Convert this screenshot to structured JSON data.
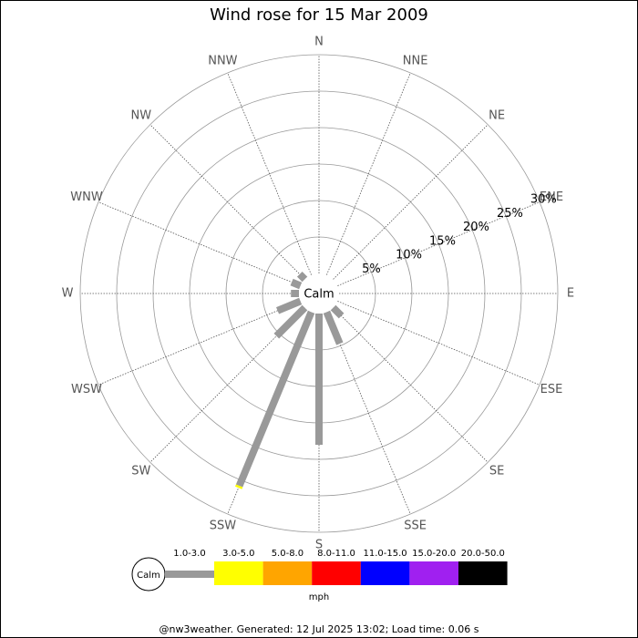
{
  "chart_data": {
    "type": "wind_rose",
    "title": "Wind rose for 15 Mar 2009",
    "directions": [
      "N",
      "NNE",
      "NE",
      "ENE",
      "E",
      "ESE",
      "SE",
      "SSE",
      "S",
      "SSW",
      "SW",
      "WSW",
      "W",
      "WNW",
      "NW",
      "NNW"
    ],
    "center_label": "Calm",
    "rlim": [
      0,
      30
    ],
    "rticks": [
      {
        "value": 5,
        "label": "5%"
      },
      {
        "value": 10,
        "label": "10%"
      },
      {
        "value": 15,
        "label": "15%"
      },
      {
        "value": 20,
        "label": "20%"
      },
      {
        "value": 25,
        "label": "25%"
      },
      {
        "value": 30,
        "label": "30%"
      }
    ],
    "series": [
      {
        "name": "1.0-3.0",
        "color": "#999999",
        "values": [
          0,
          0,
          0,
          0,
          0,
          0,
          1.6,
          4.7,
          18,
          25.8,
          5.5,
          3.4,
          1.1,
          1.3,
          1.0,
          0
        ]
      },
      {
        "name": "3.0-5.0",
        "color": "#ffff00",
        "values": [
          0,
          0,
          0,
          0,
          0,
          0,
          0,
          0,
          0,
          0.3,
          0,
          0,
          0,
          0,
          0,
          0
        ]
      },
      {
        "name": "5.0-8.0",
        "color": "#ffa500",
        "values": [
          0,
          0,
          0,
          0,
          0,
          0,
          0,
          0,
          0,
          0,
          0,
          0,
          0,
          0,
          0,
          0
        ]
      },
      {
        "name": "8.0-11.0",
        "color": "#ff0000",
        "values": [
          0,
          0,
          0,
          0,
          0,
          0,
          0,
          0,
          0,
          0,
          0,
          0,
          0,
          0,
          0,
          0
        ]
      },
      {
        "name": "11.0-15.0",
        "color": "#0000ff",
        "values": [
          0,
          0,
          0,
          0,
          0,
          0,
          0,
          0,
          0,
          0,
          0,
          0,
          0,
          0,
          0,
          0
        ]
      },
      {
        "name": "15.0-20.0",
        "color": "#a020f0",
        "values": [
          0,
          0,
          0,
          0,
          0,
          0,
          0,
          0,
          0,
          0,
          0,
          0,
          0,
          0,
          0,
          0
        ]
      },
      {
        "name": "20.0-50.0",
        "color": "#000000",
        "values": [
          0,
          0,
          0,
          0,
          0,
          0,
          0,
          0,
          0,
          0,
          0,
          0,
          0,
          0,
          0,
          0
        ]
      }
    ],
    "legend_calm": "Calm",
    "legend_unit": "mph",
    "footer": "@nw3weather. Generated: 12 Jul 2025 13:02; Load time: 0.06 s"
  }
}
